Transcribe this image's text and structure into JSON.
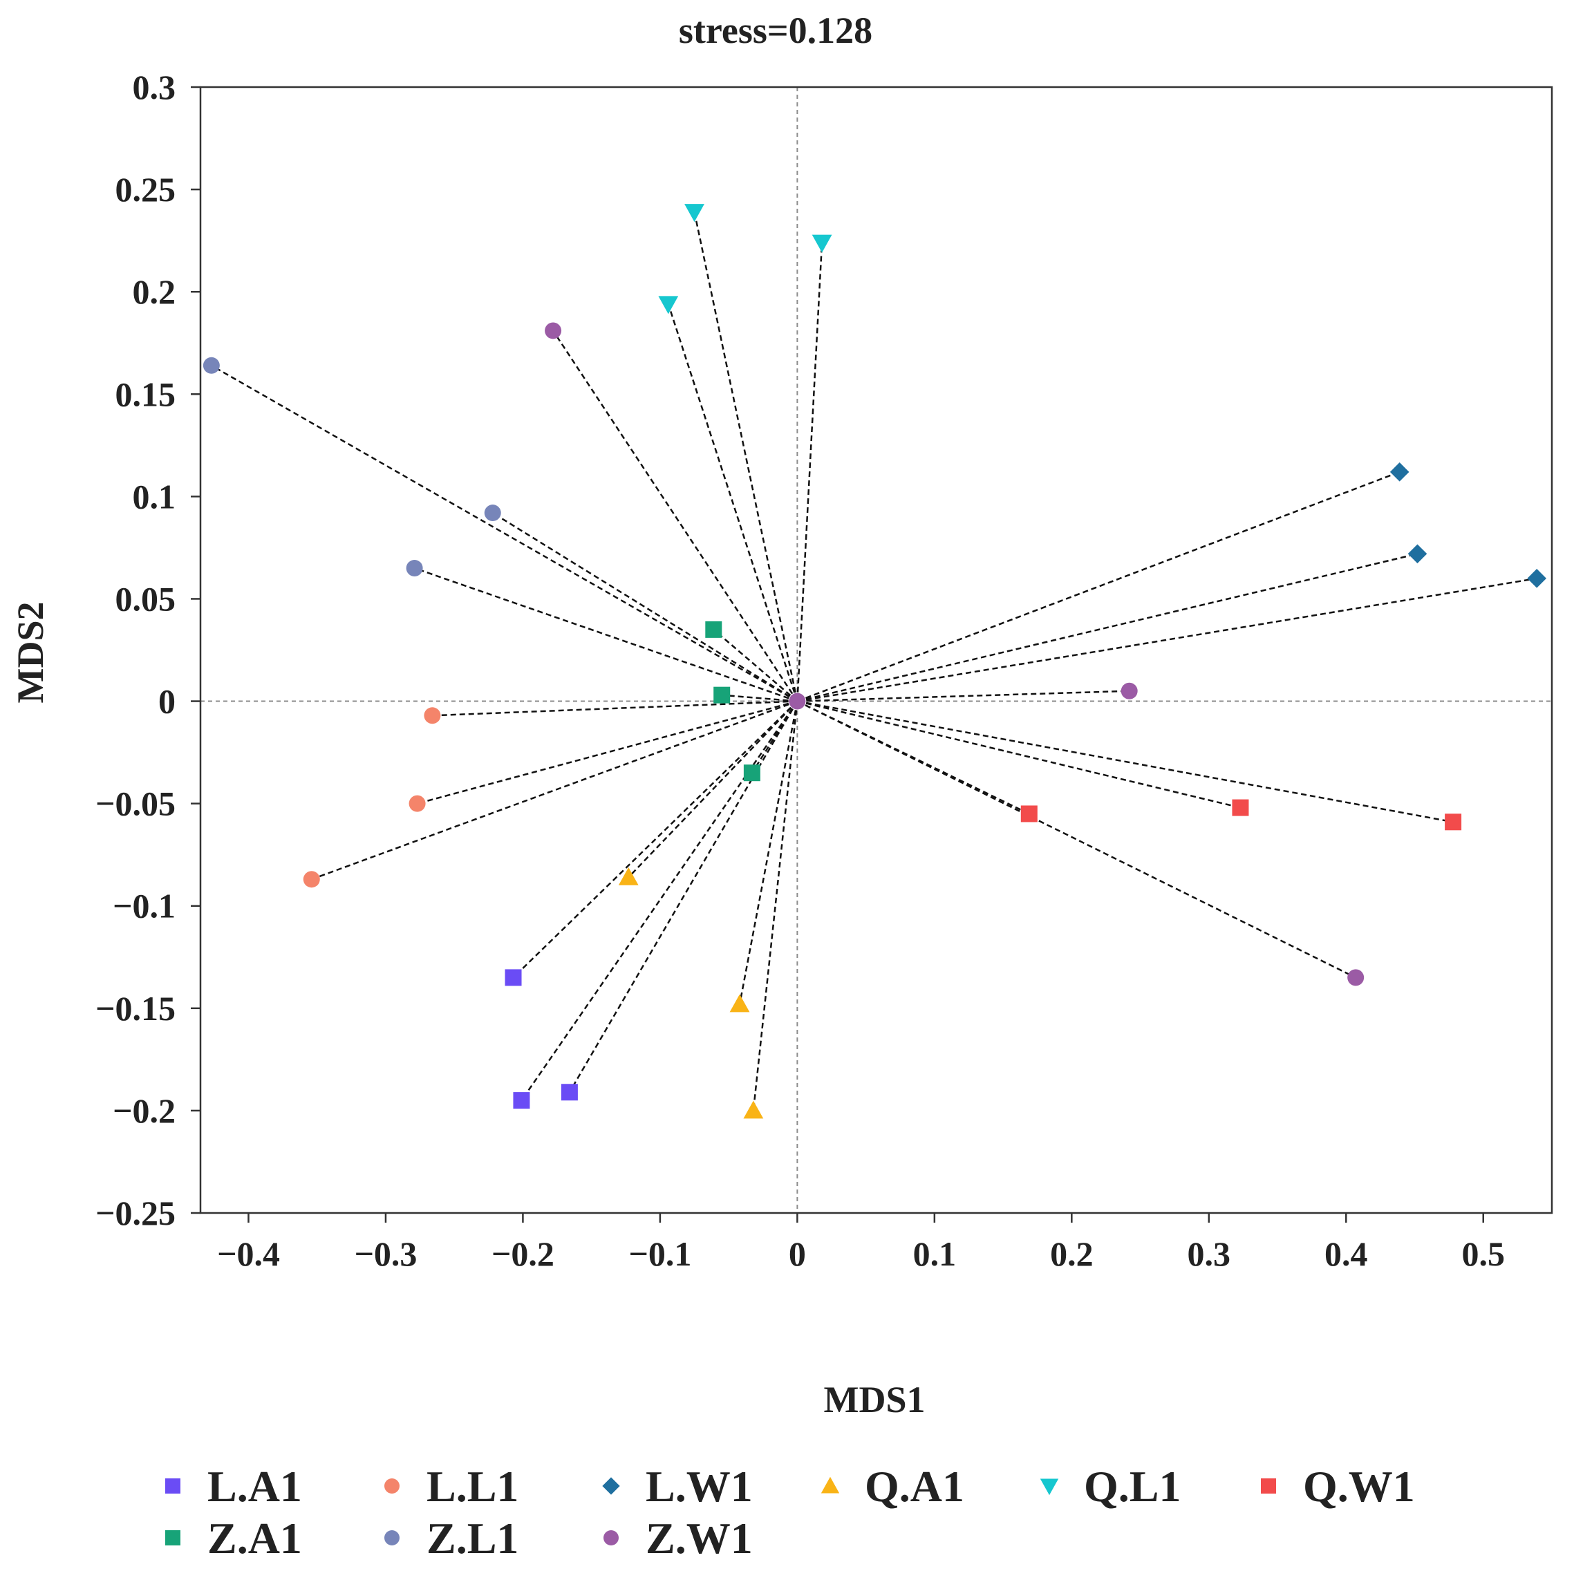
{
  "chart_data": {
    "type": "scatter",
    "title": "stress=0.128",
    "xlabel": "MDS1",
    "ylabel": "MDS2",
    "xlim": [
      -0.435,
      0.55
    ],
    "ylim": [
      -0.25,
      0.3
    ],
    "xticks": [
      -0.4,
      -0.3,
      -0.2,
      -0.1,
      0,
      0.1,
      0.2,
      0.3,
      0.4,
      0.5
    ],
    "xtick_labels": [
      "−0.4",
      "−0.3",
      "−0.2",
      "−0.1",
      "0",
      "0.1",
      "0.2",
      "0.3",
      "0.4",
      "0.5"
    ],
    "yticks": [
      0.3,
      0.25,
      0.2,
      0.15,
      0.1,
      0.05,
      0,
      -0.05,
      -0.1,
      -0.15,
      -0.2,
      -0.25
    ],
    "ytick_labels": [
      "0.3",
      "0.25",
      "0.2",
      "0.15",
      "0.1",
      "0.05",
      "0",
      "−0.05",
      "−0.1",
      "−0.15",
      "−0.2",
      "−0.25"
    ],
    "reference_lines": {
      "x": 0,
      "y": 0
    },
    "centroid": [
      0,
      0
    ],
    "spider_lines": true,
    "grid": false,
    "legend_position": "bottom",
    "series": [
      {
        "name": "L.A1",
        "marker": "square",
        "color": "#6A4CF5",
        "points": [
          [
            -0.207,
            -0.135
          ],
          [
            -0.201,
            -0.195
          ],
          [
            -0.166,
            -0.191
          ]
        ]
      },
      {
        "name": "L.L1",
        "marker": "circle",
        "color": "#F4846A",
        "points": [
          [
            -0.266,
            -0.007
          ],
          [
            -0.277,
            -0.05
          ],
          [
            -0.354,
            -0.087
          ]
        ]
      },
      {
        "name": "L.W1",
        "marker": "diamond",
        "color": "#1F6F9F",
        "points": [
          [
            0.439,
            0.112
          ],
          [
            0.452,
            0.072
          ],
          [
            0.539,
            0.06
          ]
        ]
      },
      {
        "name": "Q.A1",
        "marker": "triangle-up",
        "color": "#F9B316",
        "points": [
          [
            -0.123,
            -0.086
          ],
          [
            -0.042,
            -0.148
          ],
          [
            -0.032,
            -0.2
          ]
        ]
      },
      {
        "name": "Q.L1",
        "marker": "triangle-down",
        "color": "#16C7CF",
        "points": [
          [
            -0.075,
            0.239
          ],
          [
            0.018,
            0.224
          ],
          [
            -0.094,
            0.194
          ]
        ]
      },
      {
        "name": "Q.W1",
        "marker": "square",
        "color": "#F24B4B",
        "points": [
          [
            0.169,
            -0.055
          ],
          [
            0.323,
            -0.052
          ],
          [
            0.478,
            -0.059
          ]
        ]
      },
      {
        "name": "Z.A1",
        "marker": "square",
        "color": "#17A378",
        "points": [
          [
            -0.061,
            0.035
          ],
          [
            -0.055,
            0.003
          ],
          [
            -0.033,
            -0.035
          ]
        ]
      },
      {
        "name": "Z.L1",
        "marker": "circle",
        "color": "#7785B9",
        "points": [
          [
            -0.427,
            0.164
          ],
          [
            -0.222,
            0.092
          ],
          [
            -0.279,
            0.065
          ]
        ]
      },
      {
        "name": "Z.W1",
        "marker": "circle",
        "color": "#9B5BA5",
        "points": [
          [
            -0.178,
            0.181
          ],
          [
            0.242,
            0.005
          ],
          [
            0.407,
            -0.135
          ],
          [
            0,
            0
          ]
        ]
      }
    ]
  }
}
